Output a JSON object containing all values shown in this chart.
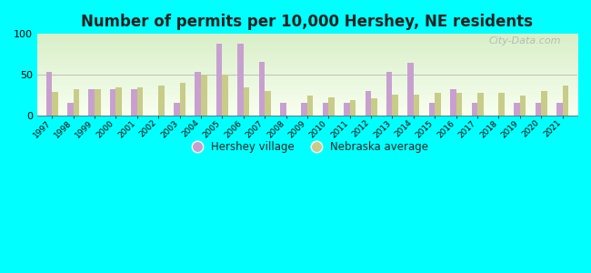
{
  "title": "Number of permits per 10,000 Hershey, NE residents",
  "years": [
    1997,
    1998,
    1999,
    2000,
    2001,
    2002,
    2003,
    2004,
    2005,
    2006,
    2007,
    2008,
    2009,
    2010,
    2011,
    2012,
    2013,
    2014,
    2015,
    2016,
    2017,
    2018,
    2019,
    2020,
    2021
  ],
  "hershey": [
    53,
    15,
    32,
    32,
    32,
    0,
    15,
    53,
    88,
    88,
    66,
    16,
    15,
    15,
    15,
    30,
    53,
    65,
    15,
    32,
    15,
    0,
    15,
    15,
    15
  ],
  "nebraska": [
    29,
    32,
    32,
    35,
    35,
    37,
    40,
    50,
    50,
    35,
    30,
    0,
    25,
    22,
    19,
    21,
    26,
    26,
    28,
    28,
    28,
    28,
    25,
    30,
    37
  ],
  "hershey_color": "#c8a0d0",
  "nebraska_color": "#c8cc88",
  "bg_outer": "#00ffff",
  "bg_plot_top": "#d8efc8",
  "bg_plot_bottom": "#f8fff0",
  "title_fontsize": 12,
  "title_color": "#222222",
  "ylim": [
    0,
    100
  ],
  "yticks": [
    0,
    50,
    100
  ],
  "legend_hershey": "Hershey village",
  "legend_nebraska": "Nebraska average",
  "watermark": "City-Data.com",
  "bar_width": 0.28
}
